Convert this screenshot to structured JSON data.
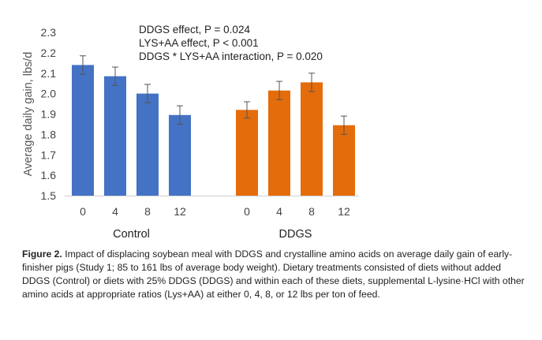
{
  "chart_data": {
    "type": "bar",
    "ylabel": "Average daily gain, lbs/d",
    "ylim": [
      1.5,
      2.3
    ],
    "ytick_labels": [
      "1.5",
      "1.6",
      "1.7",
      "1.8",
      "1.9",
      "2.0",
      "2.1",
      "2.2",
      "2.3"
    ],
    "grid": false,
    "colors": {
      "Control": "#4472c4",
      "DDGS": "#e46c0a"
    },
    "groups": [
      {
        "name": "Control",
        "categories": [
          "0",
          "4",
          "8",
          "12"
        ],
        "values": [
          2.14,
          2.085,
          2.0,
          1.895
        ],
        "error": [
          0.045,
          0.045,
          0.045,
          0.045
        ]
      },
      {
        "name": "DDGS",
        "categories": [
          "0",
          "4",
          "8",
          "12"
        ],
        "values": [
          1.92,
          2.015,
          2.055,
          1.845
        ],
        "error": [
          0.04,
          0.045,
          0.045,
          0.045
        ]
      }
    ],
    "annotations": [
      "DDGS effect, P = 0.024",
      "LYS+AA effect, P < 0.001",
      "DDGS * LYS+AA interaction, P = 0.020"
    ]
  },
  "caption": {
    "label": "Figure 2.",
    "text": "Impact of displacing soybean meal with DDGS and crystalline amino acids on average daily gain of early-finisher pigs (Study 1; 85 to 161 lbs of average body weight). Dietary treatments consisted of diets without added DDGS (Control) or diets with 25% DDGS (DDGS) and within each of these diets, supplemental L-lysine·HCl with other amino acids at appropriate ratios (Lys+AA) at either 0, 4, 8, or 12 lbs per ton of feed."
  }
}
